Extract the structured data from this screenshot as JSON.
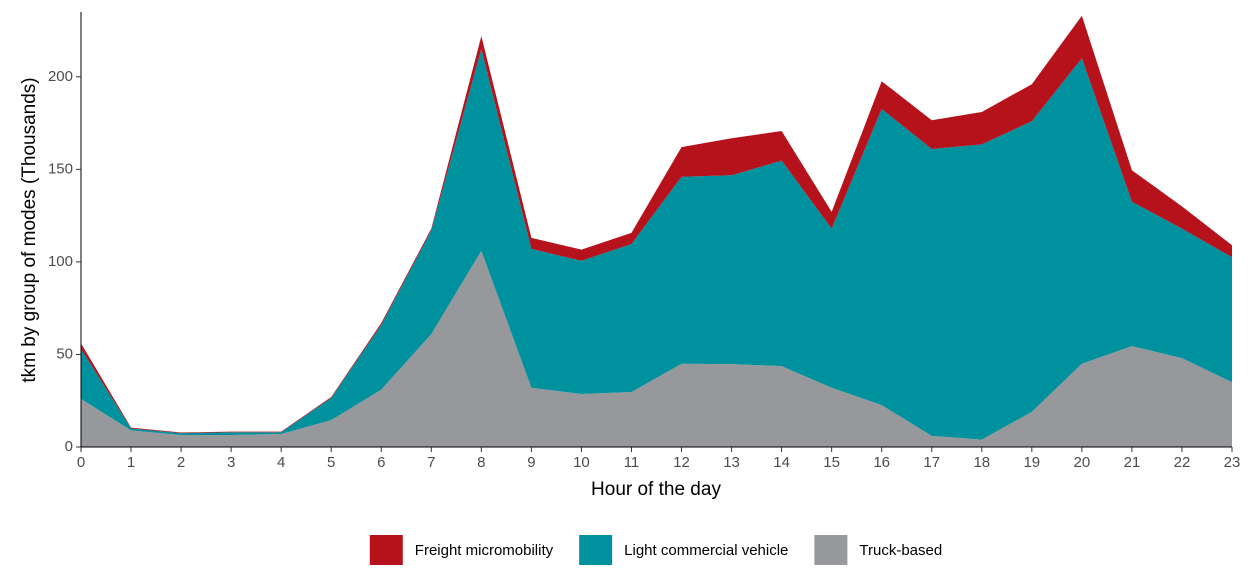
{
  "chart_data": {
    "type": "area",
    "stacked": true,
    "xlabel": "Hour of the day",
    "ylabel": "tkm by group of modes (Thousands)",
    "x": [
      0,
      1,
      2,
      3,
      4,
      5,
      6,
      7,
      8,
      9,
      10,
      11,
      12,
      13,
      14,
      15,
      16,
      17,
      18,
      19,
      20,
      21,
      22,
      23
    ],
    "series": [
      {
        "name": "Freight micromobility",
        "color": "#b5121b",
        "values": [
          3,
          0.5,
          0.3,
          0.3,
          0.3,
          0.5,
          1,
          1,
          7,
          6,
          6,
          6,
          16,
          20,
          16,
          9,
          15,
          15.5,
          17.5,
          20,
          23,
          17,
          12,
          6.5
        ]
      },
      {
        "name": "Light commercial vehicle",
        "color": "#00919e",
        "values": [
          27,
          1,
          1,
          1.5,
          1,
          12,
          35,
          56,
          109,
          75,
          72,
          80,
          101,
          102,
          111,
          86,
          160,
          155,
          159.5,
          157,
          165,
          78,
          70,
          67.5
        ]
      },
      {
        "name": "Truck-based",
        "color": "#97989b",
        "values": [
          26,
          9,
          6.5,
          6.5,
          7,
          14.5,
          31,
          61,
          106,
          32,
          28.6,
          29.7,
          45,
          44.8,
          43.7,
          32,
          22.6,
          6,
          4,
          19,
          45,
          54.5,
          48,
          35
        ]
      }
    ],
    "xlim": [
      0,
      23
    ],
    "xticks": [
      0,
      1,
      2,
      3,
      4,
      5,
      6,
      7,
      8,
      9,
      10,
      11,
      12,
      13,
      14,
      15,
      16,
      17,
      18,
      19,
      20,
      21,
      22,
      23
    ],
    "ylim": [
      0,
      235
    ],
    "yticks": [
      0,
      50,
      100,
      150,
      200
    ],
    "grid": false,
    "legend": "bottom"
  }
}
